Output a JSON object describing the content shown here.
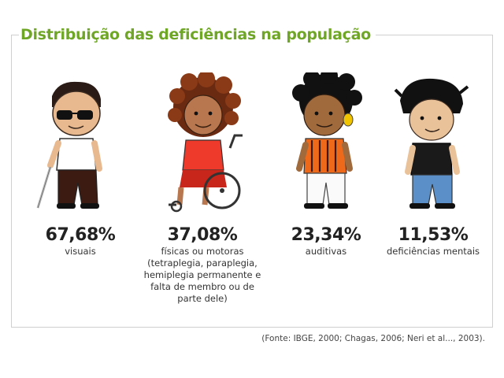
{
  "title": "Distribuição das deficiências na população",
  "items": [
    {
      "percent": "67,68%",
      "label": "visuais",
      "icon": "blind-person-with-cane"
    },
    {
      "percent": "37,08%",
      "label": "físicas ou motoras",
      "detail": "(tetraplegia, paraplegia, hemiplegia permanente e falta de membro ou de parte dele)",
      "icon": "wheelchair-user"
    },
    {
      "percent": "23,34%",
      "label": "auditivas",
      "icon": "hearing-aid-user"
    },
    {
      "percent": "11,53%",
      "label": "deficiências mentais",
      "icon": "intellectual-disability-person"
    }
  ],
  "source": "(Fonte: IBGE, 2000; Chagas, 2006; Neri et al..., 2003).",
  "colors": {
    "title": "#6fa626",
    "text": "#222222",
    "border": "#cfcfcf"
  }
}
